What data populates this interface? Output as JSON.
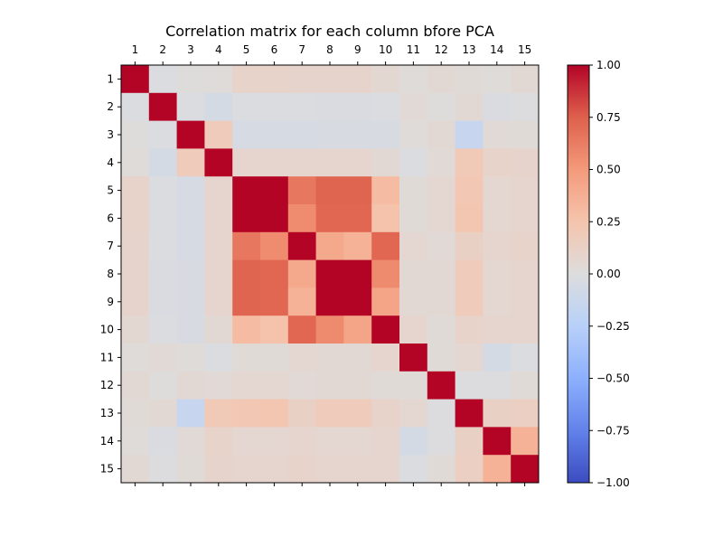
{
  "chart_data": {
    "type": "heatmap",
    "title": "Correlation matrix for each column bfore PCA",
    "xlabel": "",
    "ylabel": "",
    "x_tick_position": "top",
    "grid": false,
    "colormap": "coolwarm",
    "row_labels": [
      "1",
      "2",
      "3",
      "4",
      "5",
      "6",
      "7",
      "8",
      "9",
      "10",
      "11",
      "12",
      "13",
      "14",
      "15"
    ],
    "col_labels": [
      "1",
      "2",
      "3",
      "4",
      "5",
      "6",
      "7",
      "8",
      "9",
      "10",
      "11",
      "12",
      "13",
      "14",
      "15"
    ],
    "values": [
      [
        1.0,
        -0.02,
        0.01,
        0.02,
        0.1,
        0.1,
        0.09,
        0.09,
        0.09,
        0.06,
        0.02,
        0.05,
        0.03,
        0.02,
        0.05
      ],
      [
        -0.02,
        1.0,
        -0.02,
        -0.06,
        -0.02,
        -0.02,
        -0.02,
        -0.03,
        -0.03,
        -0.02,
        0.04,
        0.01,
        0.05,
        -0.03,
        -0.01
      ],
      [
        0.01,
        -0.02,
        1.0,
        0.18,
        -0.05,
        -0.05,
        -0.05,
        -0.04,
        -0.04,
        -0.04,
        0.02,
        0.05,
        -0.15,
        0.04,
        0.03
      ],
      [
        0.02,
        -0.06,
        0.18,
        1.0,
        0.08,
        0.08,
        0.08,
        0.08,
        0.08,
        0.05,
        -0.02,
        0.04,
        0.2,
        0.1,
        0.09
      ],
      [
        0.1,
        -0.02,
        -0.05,
        0.08,
        1.0,
        1.0,
        0.65,
        0.73,
        0.73,
        0.3,
        0.03,
        0.07,
        0.22,
        0.07,
        0.08
      ],
      [
        0.1,
        -0.02,
        -0.05,
        0.08,
        1.0,
        1.0,
        0.56,
        0.72,
        0.72,
        0.26,
        0.03,
        0.07,
        0.23,
        0.07,
        0.08
      ],
      [
        0.09,
        -0.02,
        -0.05,
        0.08,
        0.65,
        0.56,
        1.0,
        0.41,
        0.36,
        0.72,
        0.07,
        0.04,
        0.13,
        0.08,
        0.1
      ],
      [
        0.09,
        -0.03,
        -0.04,
        0.08,
        0.73,
        0.72,
        0.41,
        1.0,
        1.0,
        0.57,
        0.05,
        0.05,
        0.18,
        0.07,
        0.08
      ],
      [
        0.09,
        -0.03,
        -0.04,
        0.08,
        0.73,
        0.72,
        0.36,
        1.0,
        1.0,
        0.44,
        0.05,
        0.05,
        0.18,
        0.07,
        0.08
      ],
      [
        0.06,
        -0.02,
        -0.04,
        0.05,
        0.3,
        0.26,
        0.72,
        0.57,
        0.44,
        1.0,
        0.08,
        0.03,
        0.1,
        0.08,
        0.08
      ],
      [
        0.02,
        0.04,
        0.02,
        -0.02,
        0.03,
        0.03,
        0.07,
        0.05,
        0.05,
        0.08,
        1.0,
        0.03,
        0.07,
        -0.06,
        -0.02
      ],
      [
        0.05,
        0.01,
        0.05,
        0.04,
        0.07,
        0.07,
        0.04,
        0.05,
        0.05,
        0.03,
        0.03,
        1.0,
        -0.01,
        -0.01,
        0.03
      ],
      [
        0.03,
        0.05,
        -0.15,
        0.2,
        0.22,
        0.23,
        0.13,
        0.18,
        0.18,
        0.1,
        0.07,
        -0.01,
        1.0,
        0.13,
        0.14
      ],
      [
        0.02,
        -0.03,
        0.04,
        0.1,
        0.07,
        0.07,
        0.08,
        0.07,
        0.07,
        0.08,
        -0.06,
        -0.01,
        0.13,
        1.0,
        0.36
      ],
      [
        0.05,
        -0.01,
        0.03,
        0.09,
        0.08,
        0.08,
        0.1,
        0.08,
        0.08,
        0.08,
        -0.02,
        0.03,
        0.14,
        0.36,
        1.0
      ]
    ],
    "vmin": -1.0,
    "vmax": 1.0,
    "colorbar": {
      "position": "right",
      "ticks": [
        -1.0,
        -0.75,
        -0.5,
        -0.25,
        0.0,
        0.25,
        0.5,
        0.75,
        1.0
      ],
      "tick_labels": [
        "−1.00",
        "−0.75",
        "−0.50",
        "−0.25",
        "0.00",
        "0.25",
        "0.50",
        "0.75",
        "1.00"
      ]
    }
  }
}
